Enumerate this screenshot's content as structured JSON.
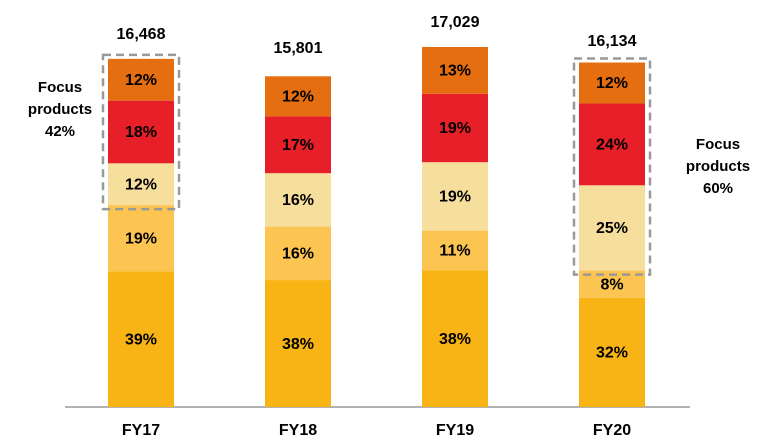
{
  "chart_data": {
    "type": "bar",
    "stacked": true,
    "categories": [
      "FY17",
      "FY18",
      "FY19",
      "FY20"
    ],
    "totals": {
      "values": [
        16468,
        15801,
        17029,
        16134
      ],
      "value_labels": [
        "16,468",
        "15,801",
        "17,029",
        "16,134"
      ]
    },
    "series": [
      {
        "color": "#F8B414",
        "values": [
          39,
          38,
          38,
          32
        ],
        "value_labels": [
          "39%",
          "38%",
          "38%",
          "32%"
        ]
      },
      {
        "color": "#FCC552",
        "values": [
          19,
          16,
          11,
          8
        ],
        "value_labels": [
          "19%",
          "16%",
          "11%",
          "8%"
        ]
      },
      {
        "color": "#F6DE9C",
        "values": [
          12,
          16,
          19,
          25
        ],
        "value_labels": [
          "12%",
          "16%",
          "19%",
          "25%"
        ]
      },
      {
        "color": "#E61F28",
        "values": [
          18,
          17,
          19,
          24
        ],
        "value_labels": [
          "18%",
          "17%",
          "19%",
          "24%"
        ]
      },
      {
        "color": "#E46E10",
        "values": [
          12,
          12,
          13,
          12
        ],
        "value_labels": [
          "12%",
          "12%",
          "13%",
          "12%"
        ]
      }
    ],
    "annotations": [
      {
        "lines": [
          "Focus",
          "products",
          "42%"
        ]
      },
      {
        "lines": [
          "Focus",
          "products",
          "60%"
        ]
      }
    ]
  }
}
